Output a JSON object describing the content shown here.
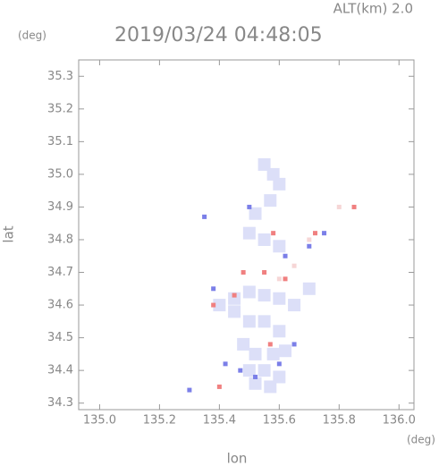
{
  "chart_data": {
    "type": "scatter",
    "title": "2019/03/24 04:48:05",
    "subtitle": "ALT(km) 2.0",
    "y_unit": "(deg)",
    "x_unit": "(deg)",
    "xlabel": "lon",
    "ylabel": "lat",
    "xlim": [
      134.93,
      136.05
    ],
    "ylim": [
      34.28,
      35.35
    ],
    "xticks": [
      {
        "value": 135.0,
        "label": "135.0"
      },
      135.2,
      135.4,
      135.6,
      135.8,
      {
        "value": 136.0,
        "label": "136.0"
      }
    ],
    "yticks": [
      34.3,
      34.4,
      34.5,
      34.6,
      34.7,
      34.8,
      34.9,
      {
        "value": 35.0,
        "label": "35.0"
      },
      35.1,
      35.2,
      35.3
    ],
    "series": [
      {
        "color": "#dcdff8",
        "x": [
          135.55,
          135.58,
          135.6,
          135.57,
          135.52,
          135.5,
          135.55,
          135.6,
          135.45,
          135.5,
          135.55,
          135.6,
          135.65,
          135.5,
          135.55,
          135.6,
          135.48,
          135.52,
          135.58,
          135.62,
          135.5,
          135.55,
          135.6,
          135.52,
          135.57,
          135.4,
          135.45,
          135.7
        ],
        "y": [
          35.03,
          35.0,
          34.97,
          34.92,
          34.88,
          34.82,
          34.8,
          34.78,
          34.62,
          34.64,
          34.63,
          34.62,
          34.6,
          34.55,
          34.55,
          34.52,
          34.48,
          34.45,
          34.45,
          34.46,
          34.4,
          34.4,
          34.38,
          34.36,
          34.35,
          34.6,
          34.58,
          34.65
        ]
      },
      {
        "color": "#7b7fe8",
        "x": [
          135.5,
          135.35,
          135.62,
          135.7,
          135.38,
          135.47,
          135.42,
          135.6,
          135.3,
          135.65,
          135.75,
          135.52
        ],
        "y": [
          34.9,
          34.87,
          34.75,
          34.78,
          34.65,
          34.4,
          34.42,
          34.42,
          34.34,
          34.48,
          34.82,
          34.38
        ]
      },
      {
        "color": "#f08080",
        "x": [
          135.58,
          135.45,
          135.38,
          135.57,
          135.62,
          135.4,
          135.72,
          135.85,
          135.48,
          135.55
        ],
        "y": [
          34.82,
          34.63,
          34.6,
          34.48,
          34.68,
          34.35,
          34.82,
          34.9,
          34.7,
          34.7
        ]
      },
      {
        "color": "#f6d6d6",
        "x": [
          135.8,
          135.7,
          135.65,
          135.6
        ],
        "y": [
          34.9,
          34.8,
          34.72,
          34.68
        ]
      }
    ]
  }
}
